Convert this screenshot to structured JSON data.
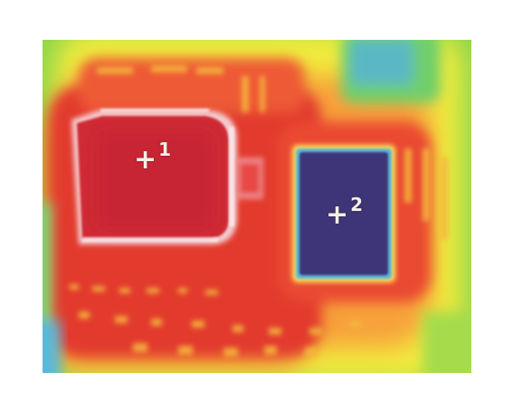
{
  "image": {
    "description_type": "thermal-image",
    "markers": [
      {
        "symbol": "+",
        "index": "1"
      },
      {
        "symbol": "+",
        "index": "2"
      }
    ],
    "colors": {
      "hot": "#d8262e",
      "warm": "#f0603a",
      "mid": "#f8c83a",
      "yellow": "#f4ee3c",
      "cool": "#8ed84a",
      "cold": "#3a3578",
      "edge_blue": "#5cb8d8",
      "highlight": "#f6f0f2"
    }
  }
}
